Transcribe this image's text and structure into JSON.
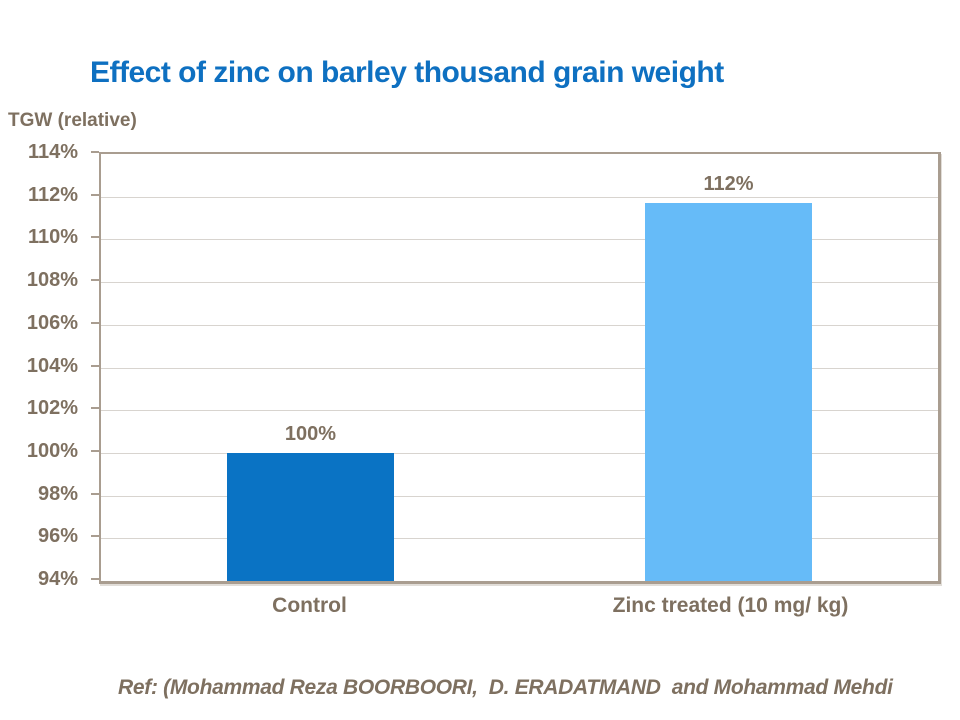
{
  "title": "Effect of zinc on barley thousand grain weight",
  "y_axis_title": "TGW (relative)",
  "footer": "Ref: (Mohammad Reza BOORBOORI,  D. ERADATMAND  and Mohammad Mehdi",
  "colors": {
    "title_blue": "#0e70c1",
    "text_brown": "#7e7060",
    "gridline": "#d8d4cf",
    "axis": "#a99d90",
    "bar_control": "#0a73c4",
    "bar_zinc": "#66bbf8"
  },
  "chart_data": {
    "type": "bar",
    "title": "Effect of zinc on barley thousand grain weight",
    "xlabel": "",
    "ylabel": "TGW (relative)",
    "categories": [
      "Control",
      "Zinc treated (10 mg/ kg)"
    ],
    "values": [
      100,
      111.7
    ],
    "data_labels": [
      "100%",
      "112%"
    ],
    "bar_colors": [
      "#0a73c4",
      "#66bbf8"
    ],
    "ylim": [
      94,
      114
    ],
    "ytick_step": 2,
    "yticks": [
      "114%",
      "112%",
      "110%",
      "108%",
      "106%",
      "104%",
      "102%",
      "100%",
      "98%",
      "96%",
      "94%"
    ],
    "grid": true,
    "legend_position": "none"
  }
}
